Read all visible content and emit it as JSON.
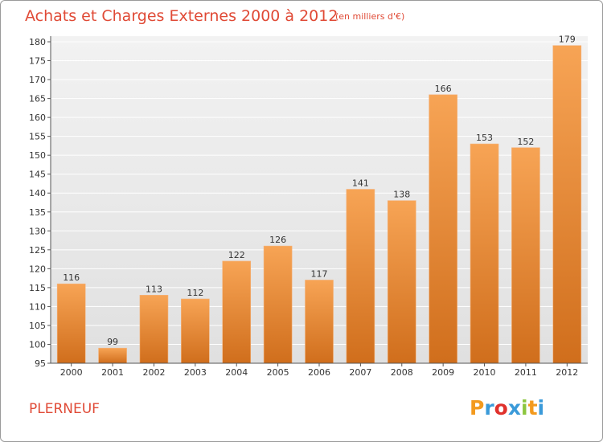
{
  "chart_data": {
    "type": "bar",
    "title": "Achats et Charges Externes 2000 à 2012",
    "subtitle": "(en milliers d'€)",
    "categories": [
      "2000",
      "2001",
      "2002",
      "2003",
      "2004",
      "2005",
      "2006",
      "2007",
      "2008",
      "2009",
      "2010",
      "2011",
      "2012"
    ],
    "values": [
      116,
      99,
      113,
      112,
      122,
      126,
      117,
      141,
      138,
      166,
      153,
      152,
      179
    ],
    "value_labels": [
      "116",
      "99",
      "113",
      "112",
      "122",
      "126",
      "117",
      "141",
      "138",
      "166",
      "153",
      "152",
      "179"
    ],
    "ylim": [
      95,
      180
    ],
    "yticks": [
      "95",
      "100",
      "105",
      "110",
      "115",
      "120",
      "125",
      "130",
      "135",
      "140",
      "145",
      "150",
      "155",
      "160",
      "165",
      "170",
      "175",
      "180"
    ],
    "grid": true,
    "xlabel": "",
    "ylabel": "",
    "bar_color_top": "#f7a455",
    "bar_color_bottom": "#d06e1c"
  },
  "footer": {
    "place": "PLERNEUF",
    "logo_letters": [
      "P",
      "r",
      "o",
      "x",
      "i",
      "t",
      "i"
    ],
    "logo_colors": [
      "#f39a1e",
      "#3a9ad9",
      "#e0312c",
      "#3a9ad9",
      "#8cc63f",
      "#f39a1e",
      "#3a9ad9"
    ]
  }
}
